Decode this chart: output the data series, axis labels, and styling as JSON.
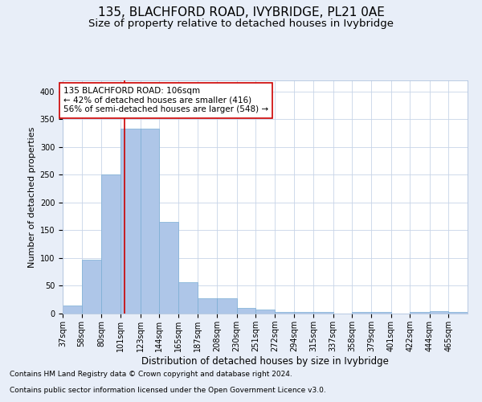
{
  "title": "135, BLACHFORD ROAD, IVYBRIDGE, PL21 0AE",
  "subtitle": "Size of property relative to detached houses in Ivybridge",
  "xlabel": "Distribution of detached houses by size in Ivybridge",
  "ylabel": "Number of detached properties",
  "footnote1": "Contains HM Land Registry data © Crown copyright and database right 2024.",
  "footnote2": "Contains public sector information licensed under the Open Government Licence v3.0.",
  "annotation_title": "135 BLACHFORD ROAD: 106sqm",
  "annotation_line1": "← 42% of detached houses are smaller (416)",
  "annotation_line2": "56% of semi-detached houses are larger (548) →",
  "bin_labels": [
    "37sqm",
    "58sqm",
    "80sqm",
    "101sqm",
    "123sqm",
    "144sqm",
    "165sqm",
    "187sqm",
    "208sqm",
    "230sqm",
    "251sqm",
    "272sqm",
    "294sqm",
    "315sqm",
    "337sqm",
    "358sqm",
    "379sqm",
    "401sqm",
    "422sqm",
    "444sqm",
    "465sqm"
  ],
  "bin_edges": [
    37,
    58,
    80,
    101,
    123,
    144,
    165,
    187,
    208,
    230,
    251,
    272,
    294,
    315,
    337,
    358,
    379,
    401,
    422,
    444,
    465
  ],
  "bar_heights": [
    15,
    97,
    251,
    333,
    333,
    165,
    57,
    28,
    28,
    10,
    7,
    3,
    3,
    3,
    0,
    3,
    3,
    0,
    3,
    5,
    3
  ],
  "bar_color": "#aec6e8",
  "bar_edgecolor": "#7aadd4",
  "vline_color": "#cc0000",
  "vline_x": 106,
  "ylim": [
    0,
    420
  ],
  "yticks": [
    0,
    50,
    100,
    150,
    200,
    250,
    300,
    350,
    400
  ],
  "background_color": "#e8eef8",
  "plot_background": "#ffffff",
  "grid_color": "#c8d4e8",
  "annotation_box_facecolor": "#ffffff",
  "annotation_box_edgecolor": "#cc0000",
  "title_fontsize": 11,
  "subtitle_fontsize": 9.5,
  "ylabel_fontsize": 8,
  "xlabel_fontsize": 8.5,
  "tick_fontsize": 7,
  "annotation_fontsize": 7.5,
  "footnote_fontsize": 6.5
}
